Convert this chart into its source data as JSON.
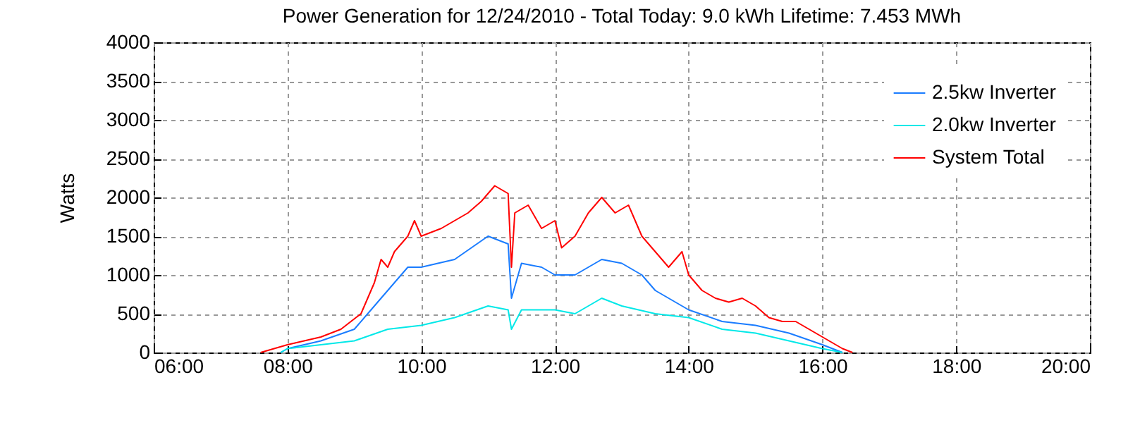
{
  "chart_data": {
    "type": "line",
    "title": "Power Generation for 12/24/2010 - Total Today: 9.0 kWh   Lifetime: 7.453 MWh",
    "ylabel": "Watts",
    "xlim": [
      6,
      20
    ],
    "xticks": [
      {
        "value": 6,
        "label": "06:00"
      },
      {
        "value": 8,
        "label": "08:00"
      },
      {
        "value": 10,
        "label": "10:00"
      },
      {
        "value": 12,
        "label": "12:00"
      },
      {
        "value": 14,
        "label": "14:00"
      },
      {
        "value": 16,
        "label": "16:00"
      },
      {
        "value": 18,
        "label": "18:00"
      },
      {
        "value": 20,
        "label": "20:00"
      }
    ],
    "ylim": [
      0,
      4000
    ],
    "yticks": [
      0,
      500,
      1000,
      1500,
      2000,
      2500,
      3000,
      3500,
      4000
    ],
    "grid": true,
    "legend": "top right",
    "series": [
      {
        "name": "2.5kw Inverter",
        "color": "#1a7cff",
        "x": [
          7.9,
          8.0,
          8.5,
          9.0,
          9.3,
          9.5,
          9.8,
          10.0,
          10.5,
          11.0,
          11.3,
          11.35,
          11.5,
          11.8,
          12.0,
          12.3,
          12.7,
          13.0,
          13.3,
          13.5,
          14.0,
          14.5,
          15.0,
          15.5,
          16.0,
          16.3
        ],
        "values": [
          0,
          50,
          150,
          300,
          600,
          800,
          1100,
          1100,
          1200,
          1500,
          1400,
          700,
          1150,
          1100,
          1000,
          1000,
          1200,
          1150,
          1000,
          800,
          550,
          400,
          350,
          250,
          100,
          0
        ]
      },
      {
        "name": "2.0kw Inverter",
        "color": "#00e8e8",
        "x": [
          7.9,
          8.0,
          8.5,
          9.0,
          9.5,
          10.0,
          10.5,
          11.0,
          11.3,
          11.35,
          11.5,
          12.0,
          12.3,
          12.7,
          13.0,
          13.5,
          14.0,
          14.5,
          15.0,
          15.5,
          16.0,
          16.3
        ],
        "values": [
          0,
          50,
          100,
          150,
          300,
          350,
          450,
          600,
          550,
          300,
          550,
          550,
          500,
          700,
          600,
          500,
          450,
          300,
          250,
          150,
          50,
          0
        ]
      },
      {
        "name": "System Total",
        "color": "#ff0000",
        "x": [
          7.6,
          8.0,
          8.5,
          8.8,
          9.1,
          9.3,
          9.4,
          9.5,
          9.6,
          9.8,
          9.9,
          10.0,
          10.3,
          10.5,
          10.7,
          10.9,
          11.1,
          11.3,
          11.35,
          11.4,
          11.6,
          11.8,
          12.0,
          12.1,
          12.3,
          12.5,
          12.7,
          12.9,
          13.1,
          13.3,
          13.5,
          13.7,
          13.9,
          14.0,
          14.2,
          14.4,
          14.6,
          14.8,
          15.0,
          15.2,
          15.4,
          15.6,
          15.8,
          16.0,
          16.3,
          16.45
        ],
        "values": [
          0,
          100,
          200,
          300,
          500,
          900,
          1200,
          1100,
          1300,
          1500,
          1700,
          1500,
          1600,
          1700,
          1800,
          1950,
          2150,
          2050,
          1100,
          1800,
          1900,
          1600,
          1700,
          1350,
          1500,
          1800,
          2000,
          1800,
          1900,
          1500,
          1300,
          1100,
          1300,
          1000,
          800,
          700,
          650,
          700,
          600,
          450,
          400,
          400,
          300,
          200,
          50,
          0
        ]
      }
    ]
  }
}
